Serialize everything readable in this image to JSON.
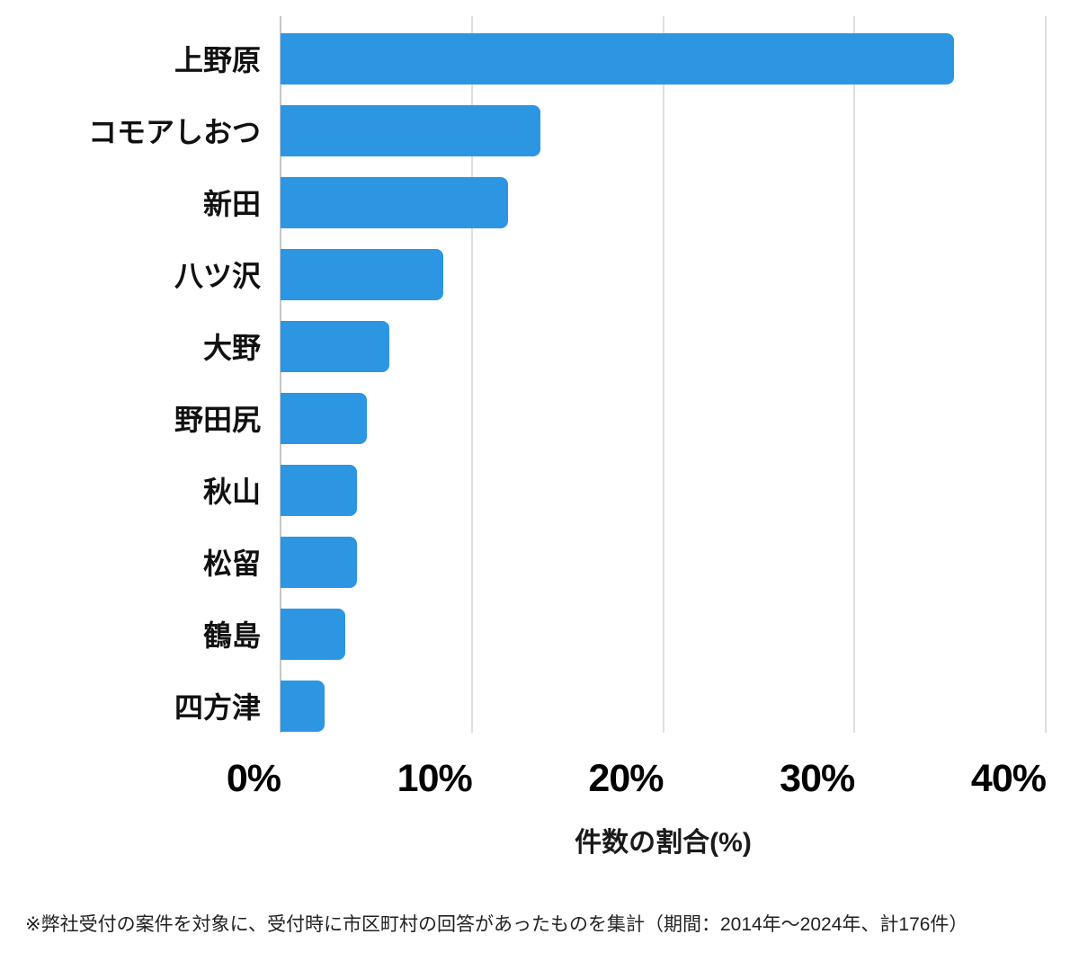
{
  "chart_data": {
    "type": "bar",
    "orientation": "horizontal",
    "categories": [
      "上野原",
      "コモアしおつ",
      "新田",
      "八ツ沢",
      "大野",
      "野田尻",
      "秋山",
      "松留",
      "鶴島",
      "四方津"
    ],
    "values": [
      35.2,
      13.6,
      11.9,
      8.5,
      5.7,
      4.5,
      4.0,
      4.0,
      3.4,
      2.3
    ],
    "xlabel": "件数の割合(%)",
    "xticks": [
      {
        "label": "0%",
        "value": 0
      },
      {
        "label": "10%",
        "value": 10
      },
      {
        "label": "20%",
        "value": 20
      },
      {
        "label": "30%",
        "value": 30
      },
      {
        "label": "40%",
        "value": 40
      }
    ],
    "xlim": [
      0,
      40
    ],
    "grid": "vertical",
    "legend": "none",
    "bar_color": "#2D96E2",
    "gridline_color": "#DEDEDE",
    "axisline_color": "#C6C6C6"
  },
  "footnote": "※弊社受付の案件を対象に、受付時に市区町村の回答があったものを集計（期間：2014年～2024年、計176件）"
}
